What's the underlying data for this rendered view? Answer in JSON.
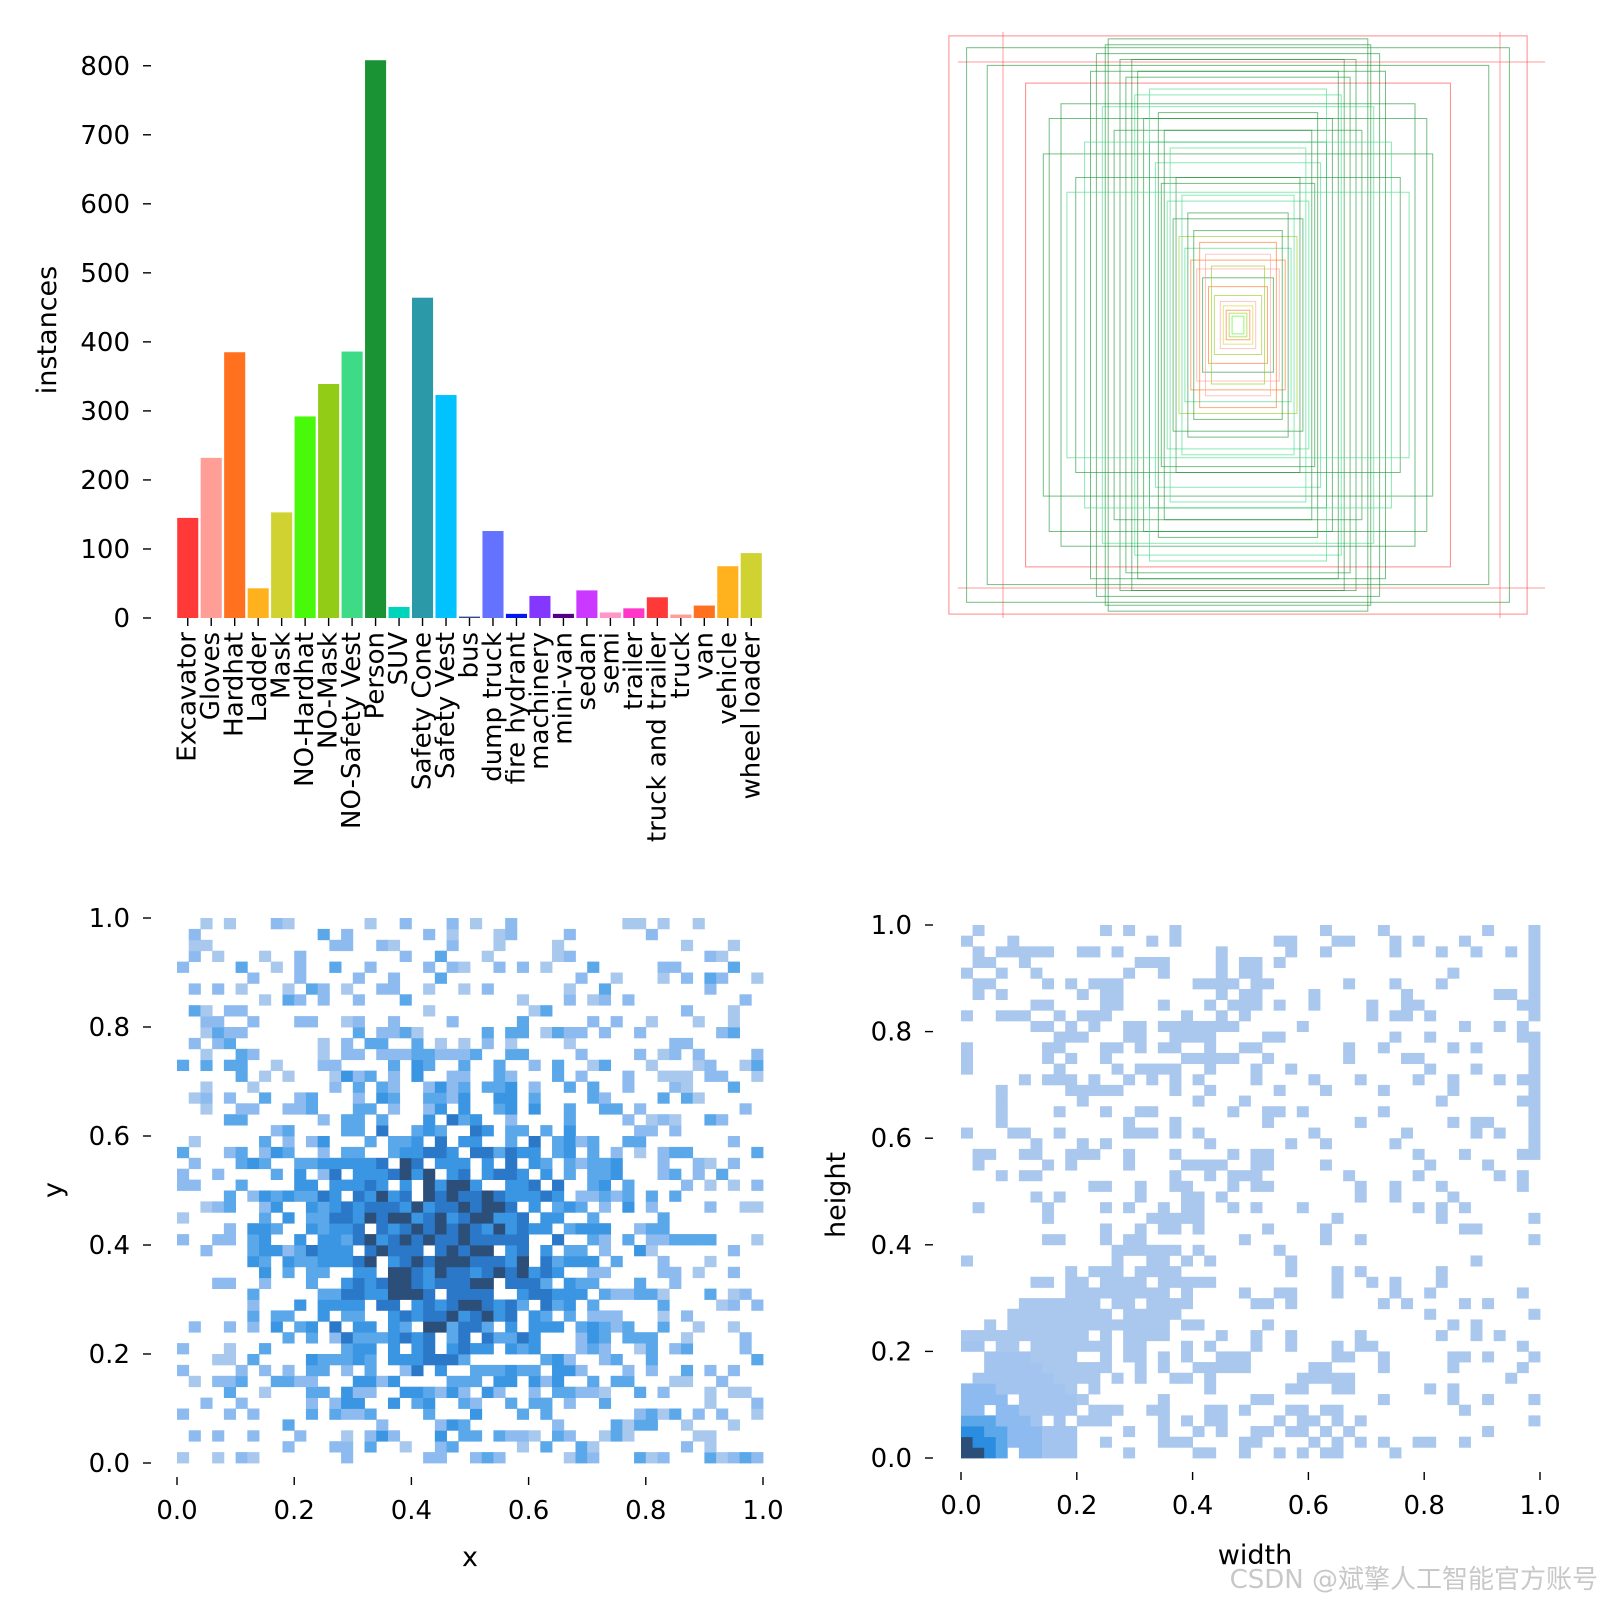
{
  "chart_data": [
    {
      "type": "bar",
      "categories": [
        "Excavator",
        "Gloves",
        "Hardhat",
        "Ladder",
        "Mask",
        "NO-Hardhat",
        "NO-Mask",
        "NO-Safety Vest",
        "Person",
        "SUV",
        "Safety Cone",
        "Safety Vest",
        "bus",
        "dump truck",
        "fire hydrant",
        "machinery",
        "mini-van",
        "sedan",
        "semi",
        "trailer",
        "truck and trailer",
        "truck",
        "van",
        "vehicle",
        "wheel loader"
      ],
      "values": [
        145,
        232,
        385,
        43,
        153,
        292,
        339,
        386,
        808,
        16,
        464,
        323,
        2,
        126,
        6,
        32,
        6,
        40,
        8,
        14,
        30,
        5,
        18,
        75,
        94
      ],
      "colors": [
        "#ff3838",
        "#ff9d97",
        "#ff701f",
        "#ffb21d",
        "#cfd231",
        "#48f90a",
        "#92cc17",
        "#3ddb86",
        "#1a9334",
        "#00d4bb",
        "#2c99a8",
        "#00c2ff",
        "#344593",
        "#6473ff",
        "#0018ec",
        "#8438ff",
        "#520085",
        "#cb38ff",
        "#ff95c8",
        "#ff37c7",
        "#ff3838",
        "#ff9d97",
        "#ff701f",
        "#ffb21d",
        "#cfd231"
      ],
      "ylabel": "instances",
      "ylim": [
        0,
        830
      ],
      "yticks": [
        "0",
        "100",
        "200",
        "300",
        "400",
        "500",
        "600",
        "700",
        "800"
      ]
    },
    {
      "type": "box-overlay",
      "title": "",
      "box_sizes": [
        [
          0.98,
          0.98
        ],
        [
          0.92,
          0.94
        ],
        [
          0.85,
          0.88
        ],
        [
          0.72,
          0.82
        ],
        [
          0.6,
          0.75
        ],
        [
          0.45,
          0.95
        ],
        [
          0.4,
          0.9
        ],
        [
          0.38,
          0.84
        ],
        [
          0.35,
          0.78
        ],
        [
          0.32,
          0.7
        ],
        [
          0.3,
          0.62
        ],
        [
          0.28,
          0.55
        ],
        [
          0.26,
          0.48
        ],
        [
          0.24,
          0.42
        ],
        [
          0.22,
          0.36
        ],
        [
          0.2,
          0.3
        ],
        [
          0.18,
          0.26
        ],
        [
          0.16,
          0.22
        ],
        [
          0.14,
          0.19
        ],
        [
          0.12,
          0.16
        ],
        [
          0.1,
          0.13
        ],
        [
          0.08,
          0.1
        ],
        [
          0.06,
          0.08
        ],
        [
          0.05,
          0.065
        ],
        [
          0.04,
          0.05
        ],
        [
          0.03,
          0.04
        ],
        [
          0.02,
          0.03
        ],
        [
          0.64,
          0.7
        ],
        [
          0.66,
          0.58
        ],
        [
          0.5,
          0.86
        ],
        [
          0.46,
          0.74
        ],
        [
          0.42,
          0.66
        ],
        [
          0.36,
          0.9
        ],
        [
          0.34,
          0.86
        ],
        [
          0.3,
          0.8
        ],
        [
          0.27,
          0.72
        ],
        [
          0.25,
          0.66
        ],
        [
          0.23,
          0.6
        ],
        [
          0.21,
          0.5
        ],
        [
          0.19,
          0.44
        ],
        [
          0.17,
          0.38
        ],
        [
          0.15,
          0.32
        ],
        [
          0.13,
          0.28
        ],
        [
          0.11,
          0.24
        ],
        [
          0.09,
          0.2
        ],
        [
          0.44,
          0.97
        ],
        [
          0.48,
          0.92
        ],
        [
          0.52,
          0.62
        ],
        [
          0.55,
          0.5
        ],
        [
          0.58,
          0.45
        ]
      ],
      "box_colors": [
        "#ff3838",
        "#1a9334",
        "#1a9334",
        "#ff3838",
        "#1a9334",
        "#1a9334",
        "#1a9334",
        "#1a9334",
        "#3ddb86",
        "#1a9334",
        "#1a9334",
        "#3ddb86",
        "#1a9334",
        "#3ddb86",
        "#1a9334",
        "#92cc17",
        "#3ddb86",
        "#ff701f",
        "#ff9d97",
        "#1a9334",
        "#ff701f",
        "#92cc17",
        "#ff9d97",
        "#cfd231",
        "#ff701f",
        "#92cc17",
        "#48f90a",
        "#1a9334",
        "#1a9334",
        "#1a9334",
        "#3ddb86",
        "#1a9334",
        "#1a9334",
        "#1a9334",
        "#3ddb86",
        "#1a9334",
        "#1a9334",
        "#3ddb86",
        "#1a9334",
        "#3ddb86",
        "#1a9334",
        "#1a9334",
        "#ff701f",
        "#ff9d97",
        "#92cc17",
        "#1a9334",
        "#1a9334",
        "#3ddb86",
        "#1a9334",
        "#3ddb86"
      ]
    },
    {
      "type": "heatmap",
      "xlabel": "x",
      "ylabel": "y",
      "xlim": [
        0,
        1
      ],
      "ylim": [
        0,
        1
      ],
      "xticks": [
        "0.0",
        "0.2",
        "0.4",
        "0.6",
        "0.8",
        "1.0"
      ],
      "yticks": [
        "0.0",
        "0.2",
        "0.4",
        "0.6",
        "0.8",
        "1.0"
      ],
      "bins": 50,
      "density_center": [
        0.45,
        0.4
      ],
      "density_spread": [
        0.2,
        0.2
      ],
      "colors": [
        "#a9c8ee",
        "#8dbbf0",
        "#5aa7ea",
        "#3a95e2",
        "#2b78c9",
        "#2c4f7a"
      ]
    },
    {
      "type": "heatmap",
      "xlabel": "width",
      "ylabel": "height",
      "xlim": [
        0,
        1
      ],
      "ylim": [
        0,
        1
      ],
      "xticks": [
        "0.0",
        "0.2",
        "0.4",
        "0.6",
        "0.8",
        "1.0"
      ],
      "yticks": [
        "0.0",
        "0.2",
        "0.4",
        "0.6",
        "0.8",
        "1.0"
      ],
      "bins": 50,
      "colors": [
        "#aac8ee",
        "#a2c4ee",
        "#8dbbf0",
        "#5aa7ea",
        "#2b8de0",
        "#2c4f7a"
      ]
    }
  ],
  "watermark": "CSDN @斌擎人工智能官方账号"
}
